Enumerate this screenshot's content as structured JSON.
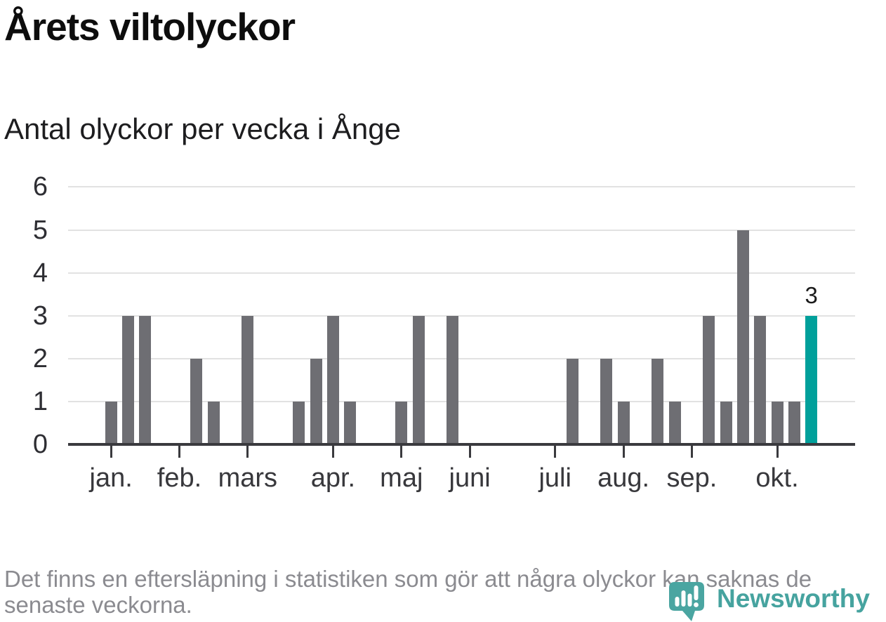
{
  "header": {
    "title": "Årets viltolyckor",
    "subtitle": "Antal olyckor per vecka i Ånge"
  },
  "chart_data": {
    "type": "bar",
    "title": "Årets viltolyckor",
    "subtitle": "Antal olyckor per vecka i Ånge",
    "x_unit": "week",
    "weekly_values": [
      0,
      0,
      1,
      3,
      3,
      0,
      0,
      2,
      1,
      0,
      3,
      0,
      0,
      1,
      2,
      3,
      1,
      0,
      0,
      1,
      3,
      0,
      3,
      0,
      0,
      0,
      0,
      0,
      0,
      2,
      0,
      2,
      1,
      0,
      2,
      1,
      0,
      3,
      1,
      5,
      3,
      1,
      1,
      3,
      0,
      0
    ],
    "highlight": {
      "index": 43,
      "value": 3,
      "label": "3"
    },
    "month_ticks": [
      {
        "label": "jan.",
        "slot": 2
      },
      {
        "label": "feb.",
        "slot": 6
      },
      {
        "label": "mars",
        "slot": 10
      },
      {
        "label": "apr.",
        "slot": 15
      },
      {
        "label": "maj",
        "slot": 19
      },
      {
        "label": "juni",
        "slot": 23
      },
      {
        "label": "juli",
        "slot": 28
      },
      {
        "label": "aug.",
        "slot": 32
      },
      {
        "label": "sep.",
        "slot": 36
      },
      {
        "label": "okt.",
        "slot": 41
      }
    ],
    "yticks": [
      0,
      1,
      2,
      3,
      4,
      5,
      6
    ],
    "ylim": [
      0,
      6
    ],
    "grid": true,
    "legend": false,
    "colors": {
      "bar": "#6e6e73",
      "highlight": "#00a09b",
      "grid": "#e2e2e2",
      "axis": "#3a3a3e",
      "ylabel": "#2e2e33",
      "xlabel": "#38383c",
      "datalabel": "#1a1a1a"
    }
  },
  "footer": {
    "note_lines": [
      "Det finns en eftersläpning i statistiken som gör att några olyckor kan saknas de",
      "senaste veckorna."
    ],
    "logo_text": "Newsworthy",
    "logo_text_color": "#46a39f",
    "logo_pin_color": "#4aa5a1"
  }
}
